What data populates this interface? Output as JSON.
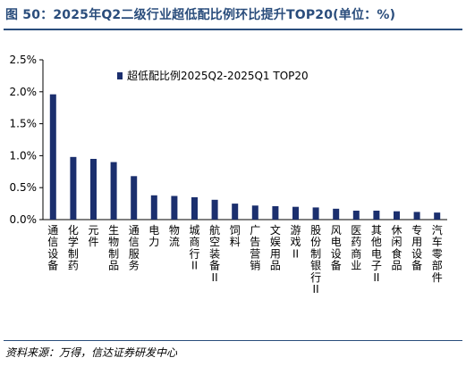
{
  "figure": {
    "title": "图 50：2025年Q2二级行业超低配比例环比提升TOP20(单位：%)",
    "source": "资料来源：万得，信达证券研发中心",
    "accent_color": "#2a4d7c"
  },
  "chart_data": {
    "type": "bar",
    "title": "",
    "xlabel": "",
    "ylabel": "",
    "ylim": [
      0,
      2.5
    ],
    "yticks": [
      "0.0%",
      "0.5%",
      "1.0%",
      "1.5%",
      "2.0%",
      "2.5%"
    ],
    "grid": false,
    "legend_position": "top",
    "bar_color": "#1b2f6e",
    "categories": [
      "通信设备",
      "化学制药",
      "元件",
      "生物制品",
      "通信服务",
      "电力",
      "物流",
      "城商行II",
      "航空装备II",
      "饲料",
      "广告营销",
      "文娱用品",
      "游戏II",
      "股份制银行II",
      "风电设备",
      "医药商业",
      "其他电子II",
      "休闲食品",
      "专用设备",
      "汽车零部件"
    ],
    "series": [
      {
        "name": "超低配比例2025Q2-2025Q1 TOP20",
        "values": [
          1.96,
          0.98,
          0.95,
          0.9,
          0.68,
          0.38,
          0.37,
          0.35,
          0.31,
          0.25,
          0.22,
          0.21,
          0.2,
          0.19,
          0.17,
          0.14,
          0.14,
          0.13,
          0.12,
          0.11
        ]
      }
    ]
  }
}
